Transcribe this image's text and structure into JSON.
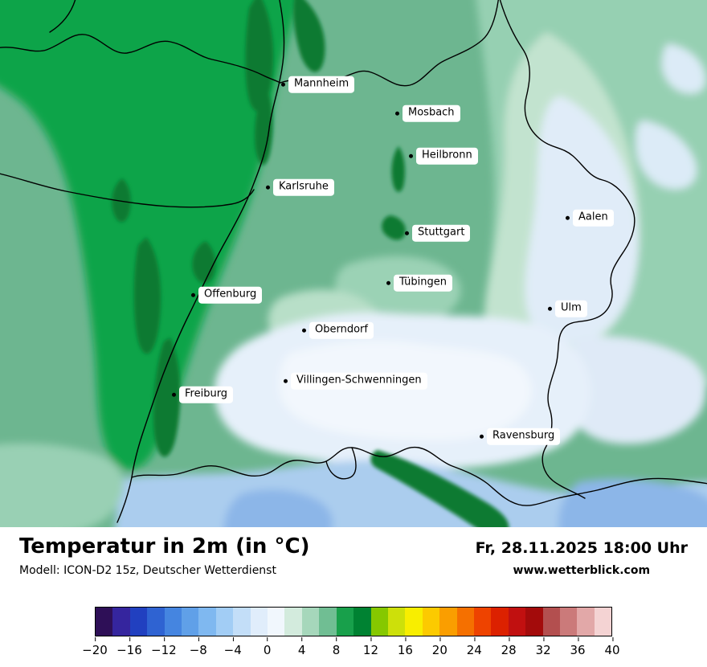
{
  "map": {
    "cities": [
      {
        "name": "Mannheim"
      },
      {
        "name": "Mosbach"
      },
      {
        "name": "Heilbronn"
      },
      {
        "name": "Karlsruhe"
      },
      {
        "name": "Aalen"
      },
      {
        "name": "Stuttgart"
      },
      {
        "name": "Tübingen"
      },
      {
        "name": "Offenburg"
      },
      {
        "name": "Ulm"
      },
      {
        "name": "Oberndorf"
      },
      {
        "name": "Villingen-Schwenningen"
      },
      {
        "name": "Freiburg"
      },
      {
        "name": "Ravensburg"
      }
    ]
  },
  "panel": {
    "title": "Temperatur in 2m (in °C)",
    "model": "Modell: ICON-D2 15z, Deutscher Wetterdienst",
    "datetime": "Fr, 28.11.2025 18:00 Uhr",
    "website": "www.wetterblick.com"
  },
  "legend": {
    "unit": "°C",
    "min": -20,
    "max": 40,
    "step": 2,
    "tick_labels": [
      "−20",
      "−16",
      "−12",
      "−8",
      "−4",
      "0",
      "4",
      "8",
      "12",
      "16",
      "20",
      "24",
      "28",
      "32",
      "36",
      "40"
    ],
    "colors": [
      "#2e0f57",
      "#35259e",
      "#2140c0",
      "#2f63d2",
      "#4585e0",
      "#60a0e8",
      "#7fb8f0",
      "#a2cdf5",
      "#c3def8",
      "#e0edfb",
      "#f1f7fd",
      "#d3ebdd",
      "#a6d7bb",
      "#70be93",
      "#18a04b",
      "#008232",
      "#86c800",
      "#cde00a",
      "#f8ee00",
      "#fcca00",
      "#fa9e00",
      "#f57000",
      "#ee4300",
      "#dc2100",
      "#c11010",
      "#a30b0b",
      "#b34f4f",
      "#cb7a7a",
      "#e2a8a8",
      "#f4d3d3"
    ]
  }
}
